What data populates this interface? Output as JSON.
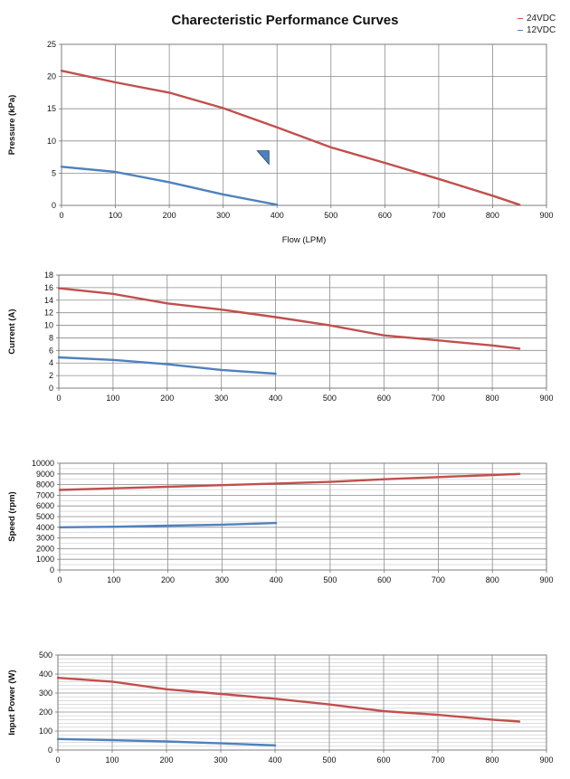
{
  "title": "Charecteristic Performance Curves",
  "legend": [
    {
      "name": "24VDC",
      "color": "#c0504d"
    },
    {
      "name": "12VDC",
      "color": "#4f81bd"
    }
  ],
  "chart_data": [
    {
      "type": "line",
      "ylabel": "Pressure (kPa)",
      "xlabel": "Flow (LPM)",
      "xlim": [
        0,
        900
      ],
      "xticks": [
        0,
        100,
        200,
        300,
        400,
        500,
        600,
        700,
        800,
        900
      ],
      "ylim": [
        0,
        25
      ],
      "yticks": [
        0,
        5,
        10,
        15,
        20,
        25
      ],
      "grid": true,
      "series": [
        {
          "name": "24VDC",
          "color": "#c0504d",
          "x": [
            0,
            100,
            200,
            300,
            400,
            500,
            600,
            700,
            800,
            850
          ],
          "y": [
            20.9,
            19.1,
            17.5,
            15.1,
            12.1,
            9.0,
            6.6,
            4.1,
            1.5,
            0.1
          ]
        },
        {
          "name": "12VDC",
          "color": "#4f81bd",
          "x": [
            0,
            100,
            200,
            300,
            400
          ],
          "y": [
            6.0,
            5.2,
            3.6,
            1.7,
            0.1
          ]
        }
      ]
    },
    {
      "type": "line",
      "ylabel": "Current (A)",
      "xlabel": "",
      "xlim": [
        0,
        900
      ],
      "xticks": [
        0,
        100,
        200,
        300,
        400,
        500,
        600,
        700,
        800,
        900
      ],
      "ylim": [
        0,
        18
      ],
      "yticks": [
        0,
        2,
        4,
        6,
        8,
        10,
        12,
        14,
        16,
        18
      ],
      "grid": true,
      "series": [
        {
          "name": "24VDC",
          "color": "#c0504d",
          "x": [
            0,
            100,
            200,
            300,
            400,
            500,
            600,
            700,
            800,
            850
          ],
          "y": [
            15.9,
            15.0,
            13.5,
            12.5,
            11.3,
            10.0,
            8.4,
            7.6,
            6.8,
            6.3
          ]
        },
        {
          "name": "12VDC",
          "color": "#4f81bd",
          "x": [
            0,
            100,
            200,
            300,
            400
          ],
          "y": [
            4.9,
            4.5,
            3.8,
            2.9,
            2.3
          ]
        }
      ]
    },
    {
      "type": "line",
      "ylabel": "Speed (rpm)",
      "xlabel": "",
      "xlim": [
        0,
        900
      ],
      "xticks": [
        0,
        100,
        200,
        300,
        400,
        500,
        600,
        700,
        800,
        900
      ],
      "ylim": [
        0,
        10000
      ],
      "yticks": [
        0,
        1000,
        2000,
        3000,
        4000,
        5000,
        6000,
        7000,
        8000,
        9000,
        10000
      ],
      "grid": true,
      "series": [
        {
          "name": "24VDC",
          "color": "#c0504d",
          "x": [
            0,
            100,
            200,
            300,
            400,
            500,
            600,
            700,
            800,
            850
          ],
          "y": [
            7500,
            7650,
            7800,
            7950,
            8100,
            8250,
            8500,
            8700,
            8900,
            9000
          ]
        },
        {
          "name": "12VDC",
          "color": "#4f81bd",
          "x": [
            0,
            100,
            200,
            300,
            400
          ],
          "y": [
            4000,
            4050,
            4150,
            4250,
            4400
          ]
        }
      ]
    },
    {
      "type": "line",
      "ylabel": "Input  Power (W)",
      "xlabel": "",
      "xlim": [
        0,
        900
      ],
      "xticks": [
        0,
        100,
        200,
        300,
        400,
        500,
        600,
        700,
        800,
        900
      ],
      "ylim": [
        0,
        500
      ],
      "yticks": [
        0,
        100,
        200,
        300,
        400,
        500
      ],
      "grid": true,
      "series": [
        {
          "name": "24VDC",
          "color": "#c0504d",
          "x": [
            0,
            100,
            200,
            300,
            400,
            500,
            600,
            700,
            800,
            850
          ],
          "y": [
            380,
            360,
            320,
            295,
            270,
            240,
            205,
            185,
            160,
            150
          ]
        },
        {
          "name": "12VDC",
          "color": "#4f81bd",
          "x": [
            0,
            100,
            200,
            300,
            400
          ],
          "y": [
            58,
            52,
            45,
            35,
            25
          ]
        }
      ]
    }
  ]
}
